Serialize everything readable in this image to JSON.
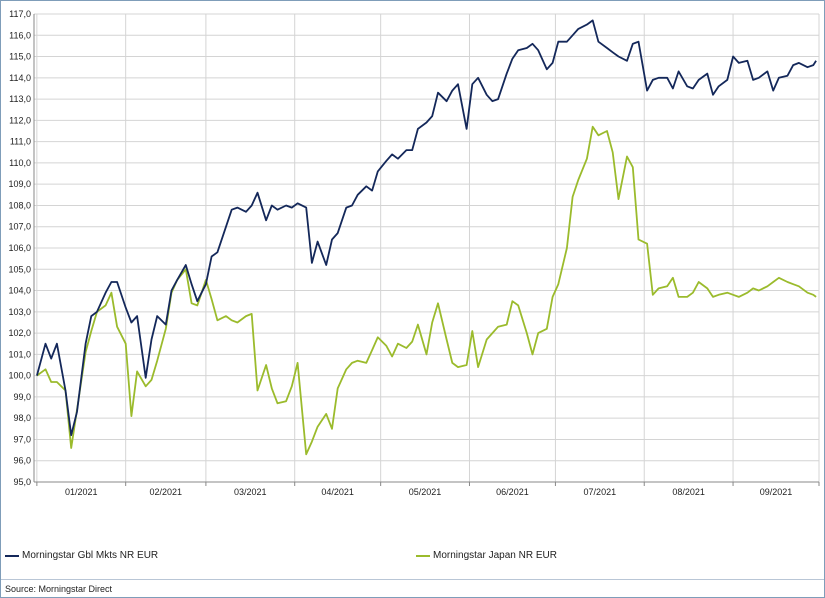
{
  "chart_data": {
    "type": "line",
    "ylim": [
      95,
      117
    ],
    "yticks": [
      "95,0",
      "96,0",
      "97,0",
      "98,0",
      "99,0",
      "100,0",
      "101,0",
      "102,0",
      "103,0",
      "104,0",
      "105,0",
      "106,0",
      "107,0",
      "108,0",
      "109,0",
      "110,0",
      "111,0",
      "112,0",
      "113,0",
      "114,0",
      "115,0",
      "116,0",
      "117,0"
    ],
    "xticks": [
      "01/2021",
      "02/2021",
      "03/2021",
      "04/2021",
      "05/2021",
      "06/2021",
      "07/2021",
      "08/2021",
      "09/2021"
    ],
    "grid": true,
    "legend_position": "bottom",
    "colors": {
      "gbl": "#14285a",
      "japan": "#9bbb2c",
      "grid": "#d4d4d4",
      "axis": "#888888"
    },
    "series": [
      {
        "name": "Morningstar Gbl Mkts NR EUR",
        "color": "#14285a",
        "x": [
          "2021-01-01",
          "2021-01-04",
          "2021-01-06",
          "2021-01-08",
          "2021-01-11",
          "2021-01-13",
          "2021-01-15",
          "2021-01-18",
          "2021-01-20",
          "2021-01-22",
          "2021-01-25",
          "2021-01-27",
          "2021-01-29",
          "2021-02-01",
          "2021-02-03",
          "2021-02-05",
          "2021-02-08",
          "2021-02-10",
          "2021-02-12",
          "2021-02-15",
          "2021-02-17",
          "2021-02-19",
          "2021-02-22",
          "2021-02-24",
          "2021-02-26",
          "2021-03-01",
          "2021-03-03",
          "2021-03-05",
          "2021-03-08",
          "2021-03-10",
          "2021-03-12",
          "2021-03-15",
          "2021-03-17",
          "2021-03-19",
          "2021-03-22",
          "2021-03-24",
          "2021-03-26",
          "2021-03-29",
          "2021-03-31",
          "2021-04-02",
          "2021-04-05",
          "2021-04-07",
          "2021-04-09",
          "2021-04-12",
          "2021-04-14",
          "2021-04-16",
          "2021-04-19",
          "2021-04-21",
          "2021-04-23",
          "2021-04-26",
          "2021-04-28",
          "2021-04-30",
          "2021-05-03",
          "2021-05-05",
          "2021-05-07",
          "2021-05-10",
          "2021-05-12",
          "2021-05-14",
          "2021-05-17",
          "2021-05-19",
          "2021-05-21",
          "2021-05-24",
          "2021-05-26",
          "2021-05-28",
          "2021-05-31",
          "2021-06-02",
          "2021-06-04",
          "2021-06-07",
          "2021-06-09",
          "2021-06-11",
          "2021-06-14",
          "2021-06-16",
          "2021-06-18",
          "2021-06-21",
          "2021-06-23",
          "2021-06-25",
          "2021-06-28",
          "2021-06-30",
          "2021-07-02",
          "2021-07-05",
          "2021-07-07",
          "2021-07-09",
          "2021-07-12",
          "2021-07-14",
          "2021-07-16",
          "2021-07-19",
          "2021-07-21",
          "2021-07-23",
          "2021-07-26",
          "2021-07-28",
          "2021-07-30",
          "2021-08-02",
          "2021-08-04",
          "2021-08-06",
          "2021-08-09",
          "2021-08-11",
          "2021-08-13",
          "2021-08-16",
          "2021-08-18",
          "2021-08-20",
          "2021-08-23",
          "2021-08-25",
          "2021-08-27",
          "2021-08-30",
          "2021-09-01",
          "2021-09-03",
          "2021-09-06",
          "2021-09-08",
          "2021-09-10",
          "2021-09-13",
          "2021-09-15",
          "2021-09-17",
          "2021-09-20",
          "2021-09-22",
          "2021-09-24",
          "2021-09-27",
          "2021-09-29",
          "2021-09-30"
        ],
        "values": [
          100.0,
          101.5,
          100.8,
          101.5,
          99.3,
          97.2,
          98.3,
          101.5,
          102.8,
          103.0,
          103.9,
          104.4,
          104.4,
          103.2,
          102.5,
          102.8,
          99.9,
          101.7,
          102.8,
          102.4,
          104.0,
          104.5,
          105.2,
          104.3,
          103.5,
          104.3,
          105.6,
          105.8,
          107.0,
          107.8,
          107.9,
          107.7,
          108.0,
          108.6,
          107.3,
          108.0,
          107.8,
          108.0,
          107.9,
          108.1,
          107.9,
          105.3,
          106.3,
          105.2,
          106.4,
          106.7,
          107.9,
          108.0,
          108.5,
          108.9,
          108.7,
          109.6,
          110.1,
          110.4,
          110.2,
          110.6,
          110.6,
          111.6,
          111.9,
          112.2,
          113.3,
          112.9,
          113.4,
          113.7,
          111.6,
          113.7,
          114.0,
          113.2,
          112.9,
          113.0,
          114.2,
          114.9,
          115.3,
          115.4,
          115.6,
          115.3,
          114.4,
          114.7,
          115.7,
          115.7,
          116.0,
          116.3,
          116.5,
          116.7,
          115.7,
          115.4,
          115.2,
          115.0,
          114.8,
          115.6,
          115.7,
          113.4,
          113.9,
          114.0,
          114.0,
          113.5,
          114.3,
          113.6,
          113.5,
          113.9,
          114.2,
          113.2,
          113.6,
          113.9,
          115.0,
          114.7,
          114.8,
          113.9,
          114.0,
          114.3,
          113.4,
          114.0,
          114.1,
          114.6,
          114.7,
          114.5,
          114.6,
          114.8
        ]
      },
      {
        "name": "Morningstar Japan NR EUR",
        "color": "#9bbb2c",
        "x": [
          "2021-01-01",
          "2021-01-04",
          "2021-01-06",
          "2021-01-08",
          "2021-01-11",
          "2021-01-13",
          "2021-01-15",
          "2021-01-18",
          "2021-01-20",
          "2021-01-22",
          "2021-01-25",
          "2021-01-27",
          "2021-01-29",
          "2021-02-01",
          "2021-02-03",
          "2021-02-05",
          "2021-02-08",
          "2021-02-10",
          "2021-02-12",
          "2021-02-15",
          "2021-02-17",
          "2021-02-19",
          "2021-02-22",
          "2021-02-24",
          "2021-02-26",
          "2021-03-01",
          "2021-03-03",
          "2021-03-05",
          "2021-03-08",
          "2021-03-10",
          "2021-03-12",
          "2021-03-15",
          "2021-03-17",
          "2021-03-19",
          "2021-03-22",
          "2021-03-24",
          "2021-03-26",
          "2021-03-29",
          "2021-03-31",
          "2021-04-02",
          "2021-04-05",
          "2021-04-07",
          "2021-04-09",
          "2021-04-12",
          "2021-04-14",
          "2021-04-16",
          "2021-04-19",
          "2021-04-21",
          "2021-04-23",
          "2021-04-26",
          "2021-04-28",
          "2021-04-30",
          "2021-05-03",
          "2021-05-05",
          "2021-05-07",
          "2021-05-10",
          "2021-05-12",
          "2021-05-14",
          "2021-05-17",
          "2021-05-19",
          "2021-05-21",
          "2021-05-24",
          "2021-05-26",
          "2021-05-28",
          "2021-05-31",
          "2021-06-02",
          "2021-06-04",
          "2021-06-07",
          "2021-06-09",
          "2021-06-11",
          "2021-06-14",
          "2021-06-16",
          "2021-06-18",
          "2021-06-21",
          "2021-06-23",
          "2021-06-25",
          "2021-06-28",
          "2021-06-30",
          "2021-07-02",
          "2021-07-05",
          "2021-07-07",
          "2021-07-09",
          "2021-07-12",
          "2021-07-14",
          "2021-07-16",
          "2021-07-19",
          "2021-07-21",
          "2021-07-23",
          "2021-07-26",
          "2021-07-28",
          "2021-07-30",
          "2021-08-02",
          "2021-08-04",
          "2021-08-06",
          "2021-08-09",
          "2021-08-11",
          "2021-08-13",
          "2021-08-16",
          "2021-08-18",
          "2021-08-20",
          "2021-08-23",
          "2021-08-25",
          "2021-08-27",
          "2021-08-30",
          "2021-09-01",
          "2021-09-03",
          "2021-09-06",
          "2021-09-08",
          "2021-09-10",
          "2021-09-13",
          "2021-09-15",
          "2021-09-17",
          "2021-09-20",
          "2021-09-22",
          "2021-09-24",
          "2021-09-27",
          "2021-09-29",
          "2021-09-30"
        ],
        "values": [
          100.0,
          100.3,
          99.7,
          99.7,
          99.3,
          96.6,
          98.4,
          101.1,
          102.1,
          103.0,
          103.3,
          103.9,
          102.3,
          101.5,
          98.1,
          100.2,
          99.5,
          99.8,
          100.7,
          102.2,
          103.9,
          104.5,
          105.0,
          103.4,
          103.3,
          104.5,
          103.6,
          102.6,
          102.8,
          102.6,
          102.5,
          102.8,
          102.9,
          99.3,
          100.5,
          99.4,
          98.7,
          98.8,
          99.5,
          100.6,
          96.3,
          96.9,
          97.6,
          98.2,
          97.5,
          99.4,
          100.3,
          100.6,
          100.7,
          100.6,
          101.2,
          101.8,
          101.4,
          100.9,
          101.5,
          101.3,
          101.6,
          102.4,
          101.0,
          102.5,
          103.4,
          101.7,
          100.6,
          100.4,
          100.5,
          102.1,
          100.4,
          101.7,
          102.0,
          102.3,
          102.4,
          103.5,
          103.3,
          102.0,
          101.0,
          102.0,
          102.2,
          103.7,
          104.3,
          106.0,
          108.4,
          109.2,
          110.2,
          111.7,
          111.3,
          111.5,
          110.5,
          108.3,
          110.3,
          109.8,
          106.4,
          106.2,
          103.8,
          104.1,
          104.2,
          104.6,
          103.7,
          103.7,
          103.9,
          104.4,
          104.1,
          103.7,
          103.8,
          103.9,
          103.8,
          103.7,
          103.9,
          104.1,
          104.0,
          104.2,
          104.4,
          104.6,
          104.4,
          104.3,
          104.2,
          103.9,
          103.8,
          103.7
        ]
      }
    ]
  },
  "footer": {
    "source": "Source: Morningstar Direct"
  }
}
